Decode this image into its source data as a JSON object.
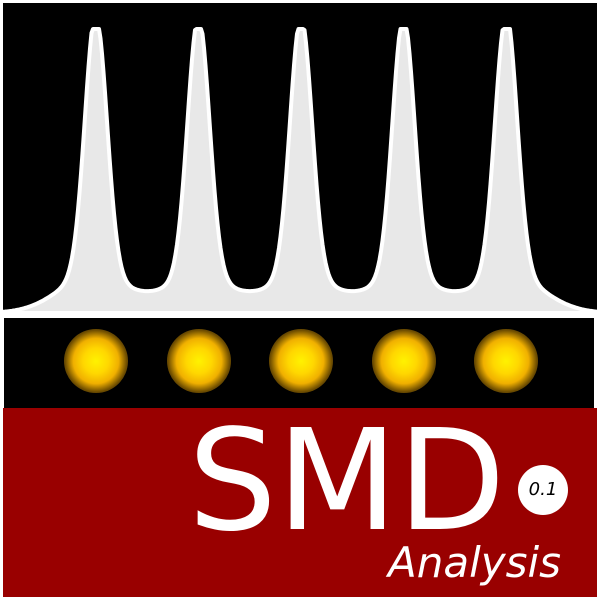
{
  "logo": {
    "title": "SMD",
    "version": "0.1",
    "subtitle": "Analysis"
  },
  "visual": {
    "peak_count": 5,
    "spot_count": 5,
    "colors": {
      "background": "#000000",
      "peak_fill": "#e8e8e8",
      "peak_outline": "#ffffff",
      "spot_core": "#fff200",
      "spot_glow": "#f0b000",
      "title_band": "#990000",
      "text": "#ffffff"
    }
  }
}
